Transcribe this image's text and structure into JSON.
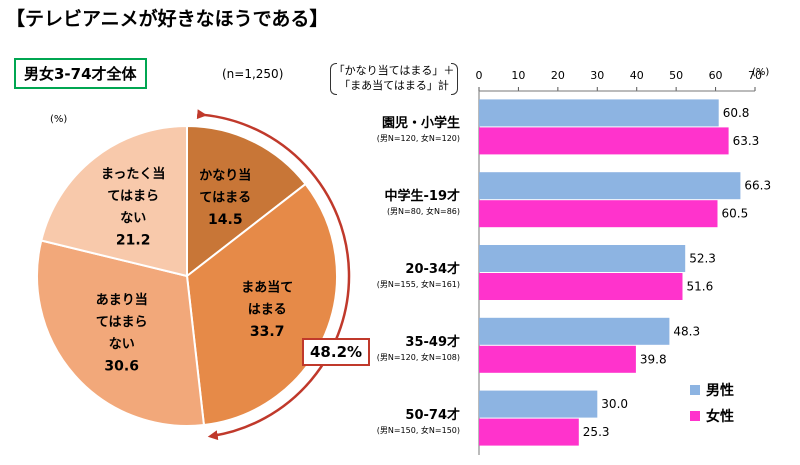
{
  "title": "【テレビアニメが好きなほうである】",
  "subset_label": "男女3-74才全体",
  "sample_size": "(n=1,250)",
  "pie_unit": "(%)",
  "bar_unit": "(%)",
  "metric_label": [
    "「かなり当てはまる」＋",
    "「まあ当てはまる」計"
  ],
  "combined_total": "48.2%",
  "colors": {
    "male": "#8db4e2",
    "female": "#ff33cc",
    "arc": "#c0392b",
    "box_border": "#00a651"
  },
  "chart_data": [
    {
      "type": "pie",
      "title": "男女3-74才全体",
      "unit": "%",
      "slices": [
        {
          "label": [
            "かなり当",
            "てはまる"
          ],
          "value": 14.5,
          "value_text": "14.5",
          "color": "#c87637"
        },
        {
          "label": [
            "まあ当て",
            "はまる"
          ],
          "value": 33.7,
          "value_text": "33.7",
          "color": "#e68a48"
        },
        {
          "label": [
            "あまり当",
            "てはまら",
            "ない"
          ],
          "value": 30.6,
          "value_text": "30.6",
          "color": "#f2a87a"
        },
        {
          "label": [
            "まったく当",
            "てはまら",
            "ない"
          ],
          "value": 21.2,
          "value_text": "21.2",
          "color": "#f8c9ab"
        }
      ]
    },
    {
      "type": "bar",
      "orientation": "horizontal",
      "xlim": [
        0,
        70
      ],
      "xticks": [
        "0",
        "10",
        "20",
        "30",
        "40",
        "50",
        "60",
        "70"
      ],
      "categories": [
        {
          "name": "園児・小学生",
          "n": "(男N=120, 女N=120)"
        },
        {
          "name": "中学生-19才",
          "n": "(男N=80, 女N=86)"
        },
        {
          "name": "20-34才",
          "n": "(男N=155, 女N=161)"
        },
        {
          "name": "35-49才",
          "n": "(男N=120, 女N=108)"
        },
        {
          "name": "50-74才",
          "n": "(男N=150, 女N=150)"
        }
      ],
      "series": [
        {
          "name": "男性",
          "color": "#8db4e2",
          "values": [
            60.8,
            66.3,
            52.3,
            48.3,
            30.0
          ],
          "labels": [
            "60.8",
            "66.3",
            "52.3",
            "48.3",
            "30.0"
          ]
        },
        {
          "name": "女性",
          "color": "#ff33cc",
          "values": [
            63.3,
            60.5,
            51.6,
            39.8,
            25.3
          ],
          "labels": [
            "63.3",
            "60.5",
            "51.6",
            "39.8",
            "25.3"
          ]
        }
      ]
    }
  ]
}
